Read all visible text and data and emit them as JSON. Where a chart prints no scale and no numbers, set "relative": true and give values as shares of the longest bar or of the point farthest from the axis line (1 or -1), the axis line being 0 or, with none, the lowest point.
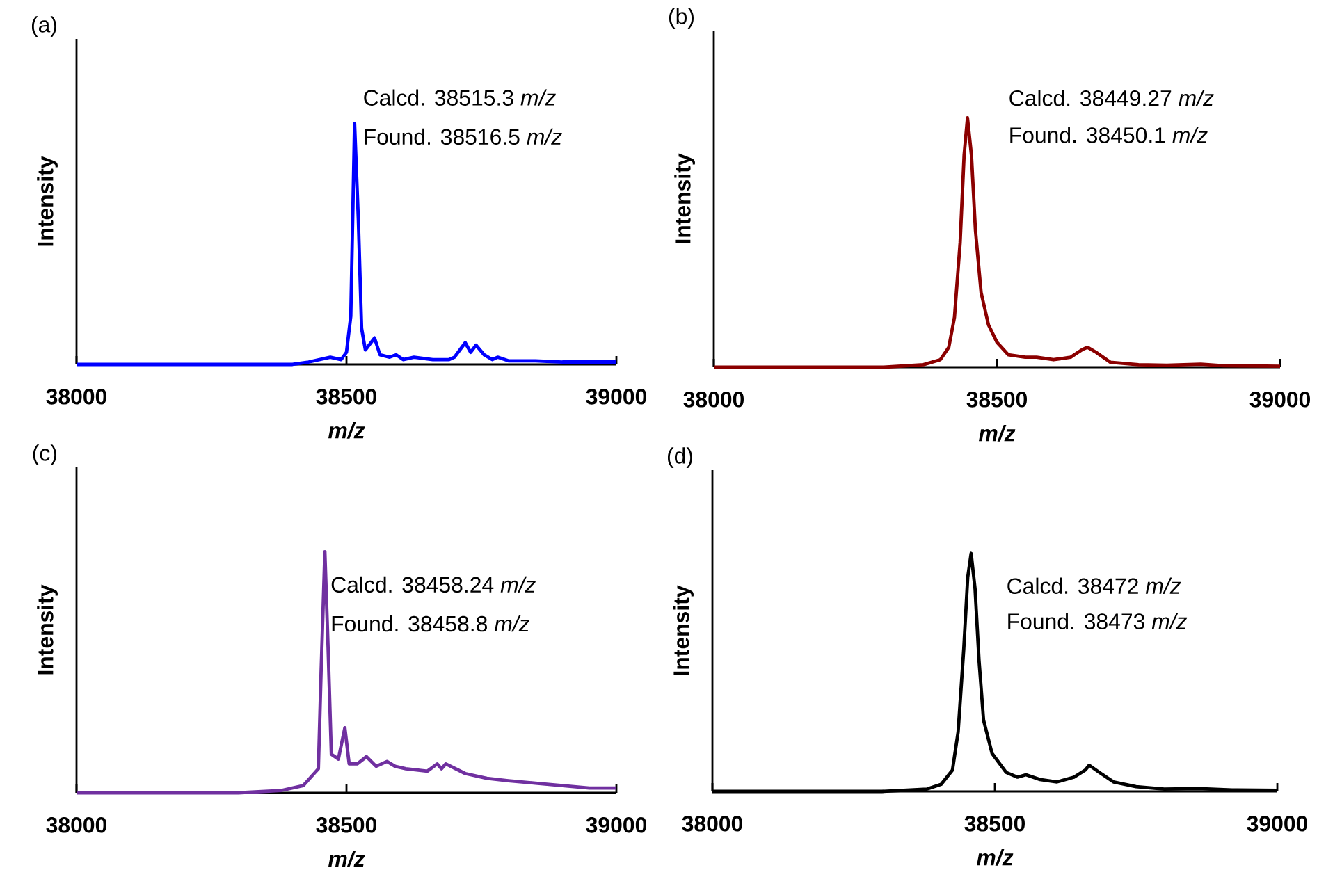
{
  "chart_data": [
    {
      "type": "line",
      "title": "(a)",
      "xlabel": "m/z",
      "ylabel": "Intensity",
      "relative": true,
      "xlim": [
        38000,
        39000
      ],
      "xticks": [
        38000,
        38500,
        39000
      ],
      "annotations": [
        "Calcd. 38515.3 *m/z*",
        "Found. 38516.5 *m/z*"
      ],
      "series": [
        {
          "color": "#0000ff",
          "x": [
            38000,
            38400,
            38430,
            38470,
            38490,
            38500,
            38508,
            38515,
            38522,
            38528,
            38535,
            38552,
            38562,
            38580,
            38592,
            38605,
            38625,
            38660,
            38690,
            38700,
            38720,
            38730,
            38740,
            38755,
            38770,
            38780,
            38800,
            38850,
            38900,
            38950,
            39000
          ],
          "values": [
            0,
            0,
            0.01,
            0.03,
            0.02,
            0.05,
            0.2,
            1.0,
            0.6,
            0.15,
            0.06,
            0.11,
            0.04,
            0.03,
            0.04,
            0.02,
            0.03,
            0.02,
            0.02,
            0.03,
            0.09,
            0.05,
            0.08,
            0.04,
            0.02,
            0.03,
            0.015,
            0.015,
            0.01,
            0.01,
            0.01
          ]
        }
      ]
    },
    {
      "type": "line",
      "title": "(b)",
      "xlabel": "m/z",
      "ylabel": "Intensity",
      "relative": true,
      "xlim": [
        38000,
        39000
      ],
      "xticks": [
        38000,
        38500,
        39000
      ],
      "annotations": [
        "Calcd. 38449.27 *m/z*",
        "Found. 38450.1 *m/z*"
      ],
      "series": [
        {
          "color": "#8b0000",
          "x": [
            38000,
            38300,
            38370,
            38400,
            38415,
            38425,
            38435,
            38442,
            38448,
            38455,
            38462,
            38472,
            38485,
            38500,
            38520,
            38550,
            38570,
            38600,
            38630,
            38650,
            38660,
            38675,
            38700,
            38750,
            38800,
            38860,
            38900,
            39000
          ],
          "values": [
            0,
            0,
            0.01,
            0.03,
            0.08,
            0.2,
            0.5,
            0.85,
            1.0,
            0.85,
            0.55,
            0.3,
            0.17,
            0.1,
            0.05,
            0.04,
            0.04,
            0.03,
            0.04,
            0.07,
            0.08,
            0.06,
            0.02,
            0.01,
            0.008,
            0.012,
            0.006,
            0.004
          ]
        }
      ]
    },
    {
      "type": "line",
      "title": "(c)",
      "xlabel": "m/z",
      "ylabel": "Intensity",
      "relative": true,
      "xlim": [
        38000,
        39000
      ],
      "xticks": [
        38000,
        38500,
        39000
      ],
      "annotations": [
        "Calcd. 38458.24 *m/z*",
        "Found. 38458.8 *m/z*"
      ],
      "series": [
        {
          "color": "#7030a0",
          "x": [
            38000,
            38300,
            38380,
            38420,
            38440,
            38448,
            38453,
            38460,
            38466,
            38472,
            38485,
            38497,
            38505,
            38520,
            38537,
            38555,
            38575,
            38590,
            38610,
            38650,
            38668,
            38676,
            38684,
            38720,
            38760,
            38800,
            38850,
            38900,
            38950,
            39000
          ],
          "values": [
            0,
            0,
            0.01,
            0.03,
            0.08,
            0.1,
            0.5,
            1.0,
            0.6,
            0.16,
            0.14,
            0.27,
            0.12,
            0.12,
            0.15,
            0.11,
            0.13,
            0.11,
            0.1,
            0.09,
            0.12,
            0.1,
            0.12,
            0.08,
            0.06,
            0.05,
            0.04,
            0.03,
            0.02,
            0.02
          ]
        }
      ]
    },
    {
      "type": "line",
      "title": "(d)",
      "xlabel": "m/z",
      "ylabel": "Intensity",
      "relative": true,
      "xlim": [
        38000,
        39000
      ],
      "xticks": [
        38000,
        38500,
        39000
      ],
      "annotations": [
        "Calcd. 38472 *m/z*",
        "Found. 38473 *m/z*"
      ],
      "series": [
        {
          "color": "#000000",
          "x": [
            38000,
            38300,
            38380,
            38405,
            38425,
            38435,
            38445,
            38452,
            38458,
            38465,
            38472,
            38480,
            38495,
            38520,
            38540,
            38555,
            38580,
            38610,
            38640,
            38660,
            38667,
            38685,
            38710,
            38750,
            38800,
            38860,
            38920,
            39000
          ],
          "values": [
            0,
            0,
            0.01,
            0.03,
            0.09,
            0.25,
            0.6,
            0.9,
            1.0,
            0.85,
            0.55,
            0.3,
            0.16,
            0.08,
            0.06,
            0.07,
            0.05,
            0.04,
            0.06,
            0.09,
            0.11,
            0.08,
            0.04,
            0.02,
            0.01,
            0.012,
            0.006,
            0.005
          ]
        }
      ]
    }
  ]
}
